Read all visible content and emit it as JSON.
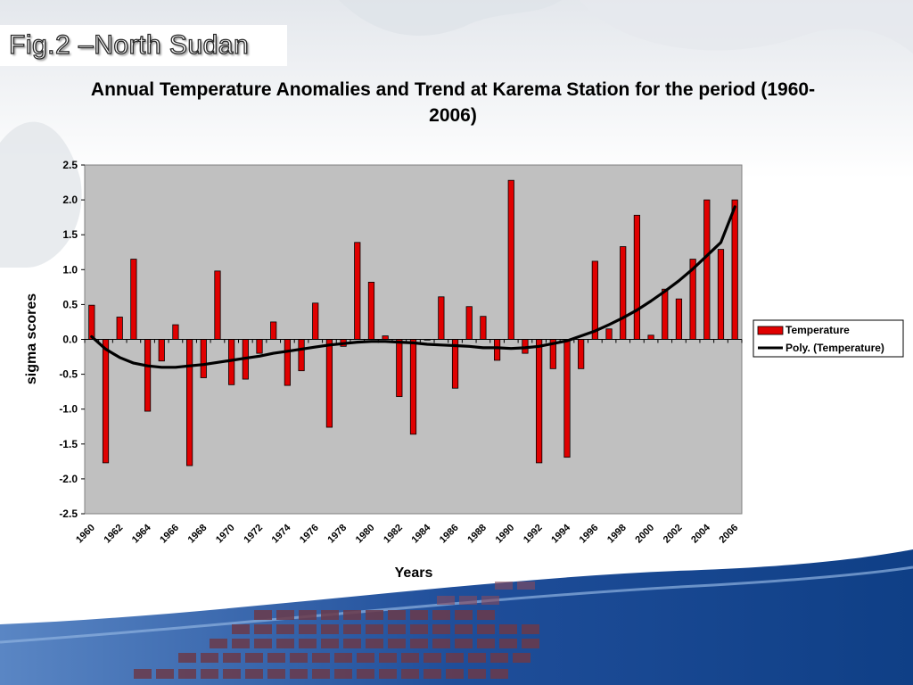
{
  "slide": {
    "label": "Fig.2 –North Sudan"
  },
  "colors": {
    "bar_fill": "#e00000",
    "bar_stroke": "#000000",
    "trend_line": "#000000",
    "plot_bg": "#c0c0c0"
  },
  "chart_data": {
    "type": "bar",
    "title": "Annual Temperature Anomalies and Trend at Karema Station for the period (1960-2006)",
    "xlabel": "Years",
    "ylabel": "sigma scores",
    "ylim": [
      -2.5,
      2.5
    ],
    "yticks": [
      "2.5",
      "2.0",
      "1.5",
      "1.0",
      "0.5",
      "0.0",
      "-0.5",
      "-1.0",
      "-1.5",
      "-2.0",
      "-2.5"
    ],
    "grid": false,
    "legend_position": "right",
    "x": [
      1960,
      1961,
      1962,
      1963,
      1964,
      1965,
      1966,
      1967,
      1968,
      1969,
      1970,
      1971,
      1972,
      1973,
      1974,
      1975,
      1976,
      1977,
      1978,
      1979,
      1980,
      1981,
      1982,
      1983,
      1984,
      1985,
      1986,
      1987,
      1988,
      1989,
      1990,
      1991,
      1992,
      1993,
      1994,
      1995,
      1996,
      1997,
      1998,
      1999,
      2000,
      2001,
      2002,
      2003,
      2004,
      2005,
      2006
    ],
    "xtick_labels": [
      "1960",
      "1962",
      "1964",
      "1966",
      "1968",
      "1970",
      "1972",
      "1974",
      "1976",
      "1978",
      "1980",
      "1982",
      "1984",
      "1986",
      "1988",
      "1990",
      "1992",
      "1994",
      "1996",
      "1998",
      "2000",
      "2002",
      "2004",
      "2006"
    ],
    "series": [
      {
        "name": "Temperature",
        "values": [
          0.49,
          -1.77,
          0.32,
          1.15,
          -1.03,
          -0.31,
          0.21,
          -1.81,
          -0.55,
          0.98,
          -0.65,
          -0.57,
          -0.2,
          0.25,
          -0.66,
          -0.45,
          0.52,
          -1.26,
          -0.1,
          1.39,
          0.82,
          0.05,
          -0.82,
          -1.36,
          0.0,
          0.61,
          -0.7,
          0.47,
          0.33,
          -0.3,
          2.28,
          -0.2,
          -1.77,
          -0.42,
          -1.69,
          -0.42,
          1.12,
          0.15,
          1.33,
          1.78,
          0.06,
          0.72,
          0.58,
          1.15,
          2.0,
          1.29,
          2.0
        ]
      },
      {
        "name": "Poly. (Temperature)",
        "type": "line",
        "values": [
          0.04,
          -0.14,
          -0.26,
          -0.34,
          -0.38,
          -0.4,
          -0.4,
          -0.38,
          -0.36,
          -0.33,
          -0.3,
          -0.27,
          -0.24,
          -0.2,
          -0.17,
          -0.14,
          -0.11,
          -0.08,
          -0.06,
          -0.04,
          -0.03,
          -0.03,
          -0.04,
          -0.05,
          -0.07,
          -0.08,
          -0.09,
          -0.1,
          -0.12,
          -0.12,
          -0.13,
          -0.12,
          -0.1,
          -0.06,
          -0.02,
          0.05,
          0.12,
          0.21,
          0.31,
          0.42,
          0.55,
          0.69,
          0.84,
          1.01,
          1.2,
          1.39,
          1.9
        ]
      }
    ]
  }
}
